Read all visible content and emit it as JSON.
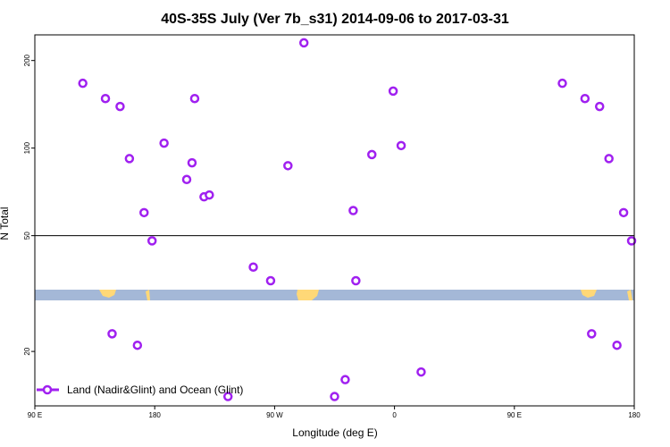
{
  "chart_data": {
    "type": "scatter",
    "title": "40S-35S July (Ver 7b_s31)   2014-09-06 to 2017-03-31",
    "xlabel": "Longitude (deg E)",
    "ylabel": "N Total",
    "x_ticks": [
      {
        "lon": -270,
        "label": "90 E"
      },
      {
        "lon": -180,
        "label": "180"
      },
      {
        "lon": -90,
        "label": "90 W"
      },
      {
        "lon": 0,
        "label": "0"
      },
      {
        "lon": 90,
        "label": "90 E"
      },
      {
        "lon": 180,
        "label": "180"
      }
    ],
    "y_scale": "log",
    "y_ticks": [
      20,
      50,
      100,
      200
    ],
    "xlim": [
      -270,
      180
    ],
    "ylim": [
      13,
      245
    ],
    "reference_line_y": 50,
    "marker_color": "#a020f0",
    "legend": {
      "position": "bottom-left",
      "label": "Land (Nadir&Glint) and Ocean (Glint)"
    },
    "series": [
      {
        "name": "Land (Nadir&Glint) and Ocean (Glint)",
        "points": [
          {
            "x": -234,
            "y": 167
          },
          {
            "x": -217,
            "y": 148
          },
          {
            "x": -212,
            "y": 23
          },
          {
            "x": -206,
            "y": 139
          },
          {
            "x": -199,
            "y": 92
          },
          {
            "x": -193,
            "y": 21
          },
          {
            "x": -188,
            "y": 60
          },
          {
            "x": -182,
            "y": 48
          },
          {
            "x": -173,
            "y": 104
          },
          {
            "x": -156,
            "y": 78
          },
          {
            "x": -152,
            "y": 89
          },
          {
            "x": -150,
            "y": 148
          },
          {
            "x": -143,
            "y": 68
          },
          {
            "x": -139,
            "y": 69
          },
          {
            "x": -125,
            "y": 14
          },
          {
            "x": -106,
            "y": 39
          },
          {
            "x": -93,
            "y": 35
          },
          {
            "x": -80,
            "y": 87
          },
          {
            "x": -68,
            "y": 230
          },
          {
            "x": -45,
            "y": 14
          },
          {
            "x": -37,
            "y": 16
          },
          {
            "x": -31,
            "y": 61
          },
          {
            "x": -29,
            "y": 35
          },
          {
            "x": -17,
            "y": 95
          },
          {
            "x": -1,
            "y": 157
          },
          {
            "x": 5,
            "y": 102
          },
          {
            "x": 20,
            "y": 17
          },
          {
            "x": 126,
            "y": 167
          },
          {
            "x": 143,
            "y": 148
          },
          {
            "x": 148,
            "y": 23
          },
          {
            "x": 154,
            "y": 139
          },
          {
            "x": 161,
            "y": 92
          },
          {
            "x": 167,
            "y": 21
          },
          {
            "x": 172,
            "y": 60
          },
          {
            "x": 178,
            "y": 48
          }
        ]
      }
    ]
  }
}
